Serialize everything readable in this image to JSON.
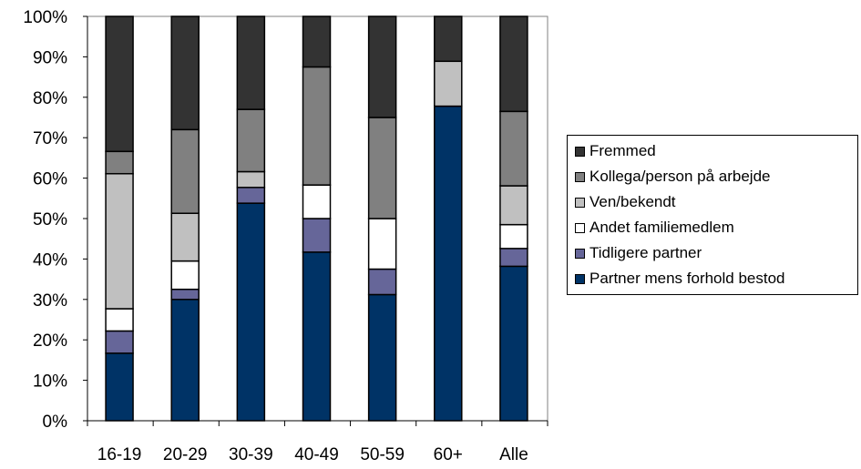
{
  "chart_data": {
    "type": "bar",
    "stacked": true,
    "percent": true,
    "categories": [
      "16-19",
      "20-29",
      "30-39",
      "40-49",
      "50-59",
      "60+",
      "Alle"
    ],
    "yticks": [
      "0%",
      "10%",
      "20%",
      "30%",
      "40%",
      "50%",
      "60%",
      "70%",
      "80%",
      "90%",
      "100%"
    ],
    "ylim": [
      0,
      100
    ],
    "legend_position": "right",
    "series": [
      {
        "name": "Partner mens forhold bestod",
        "color": "#003366",
        "values": [
          16.7,
          30,
          53.8,
          41.7,
          31.2,
          77.8,
          38.2
        ]
      },
      {
        "name": "Tidligere partner",
        "color": "#666699",
        "values": [
          5.5,
          2.5,
          3.9,
          8.3,
          6.3,
          0,
          4.4
        ]
      },
      {
        "name": "Andet familiemedlem",
        "color": "#ffffff",
        "values": [
          5.5,
          7,
          0,
          8.3,
          12.5,
          0,
          5.9
        ]
      },
      {
        "name": "Ven/bekendt",
        "color": "#c0c0c0",
        "values": [
          33.4,
          11.8,
          3.9,
          0,
          0,
          11.1,
          9.6
        ]
      },
      {
        "name": "Kollega/person på arbejde",
        "color": "#808080",
        "values": [
          5.5,
          20.7,
          15.4,
          29.2,
          25,
          0,
          18.4
        ]
      },
      {
        "name": "Fremmed",
        "color": "#333333",
        "values": [
          33.4,
          28,
          23,
          12.5,
          25,
          11.1,
          23.5
        ]
      }
    ]
  },
  "legend": {
    "items": [
      {
        "label": "Fremmed",
        "color": "#333333"
      },
      {
        "label": "Kollega/person på arbejde",
        "color": "#808080"
      },
      {
        "label": "Ven/bekendt",
        "color": "#c0c0c0"
      },
      {
        "label": "Andet familiemedlem",
        "color": "#ffffff"
      },
      {
        "label": "Tidligere partner",
        "color": "#666699"
      },
      {
        "label": "Partner mens forhold bestod",
        "color": "#003366"
      }
    ]
  }
}
